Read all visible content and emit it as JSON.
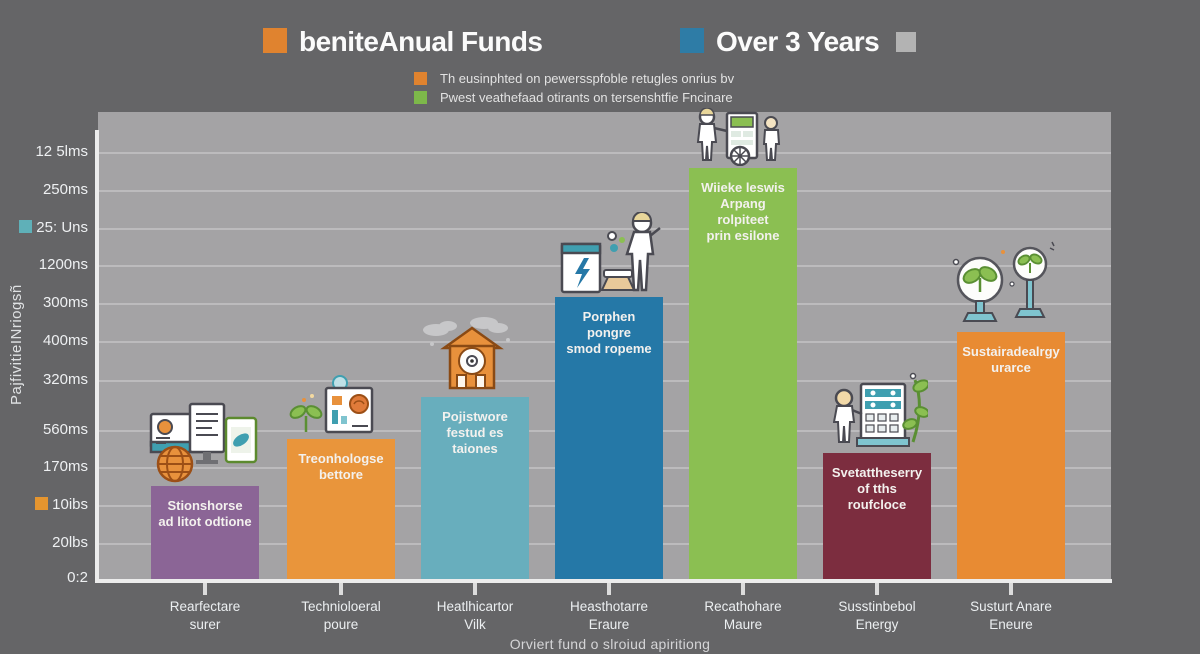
{
  "header": {
    "legend1_label": "beniteAnual Funds",
    "legend1_color": "#e0832f",
    "legend2_label": "Over 3 Years",
    "legend2_color": "#2e7ca6",
    "legend3_color": "#b3b3b3"
  },
  "subtitle": {
    "line1": {
      "swatch": "#e0832f",
      "text": "Th eusinphted on pewersspfoble retugles onrius bv"
    },
    "line2": {
      "swatch": "#7db84a",
      "text": "Pwest veathefaad otirants on tersenshtfie Fncinare"
    }
  },
  "y_axis": {
    "title": "PajfivitieINriogsñ",
    "ticks": [
      {
        "label": "12 5lms"
      },
      {
        "label": "250ms"
      },
      {
        "label": "25: Uns",
        "swatch": "#5fb0b8"
      },
      {
        "label": "1200ns"
      },
      {
        "label": "300ms"
      },
      {
        "label": "400ms"
      },
      {
        "label": "320ms"
      },
      {
        "label": "560ms"
      },
      {
        "label": "170ms"
      },
      {
        "label": "10ibs",
        "swatch": "#e5952f"
      },
      {
        "label": "20lbs"
      },
      {
        "label": "0:2"
      }
    ]
  },
  "bars": [
    {
      "lines": [
        "Stionshorse",
        "ad litot odtione"
      ],
      "xlabel": [
        "Rearfectare",
        "surer"
      ],
      "icon": "devices-globe"
    },
    {
      "lines": [
        "Treonhologse",
        "bettore"
      ],
      "xlabel": [
        "Technioloeral",
        "poure"
      ],
      "icon": "plant-chart"
    },
    {
      "lines": [
        "Pojistwore",
        "festud es taiones"
      ],
      "xlabel": [
        "Heatlhicartor",
        "Vilk"
      ],
      "icon": "house-clouds"
    },
    {
      "lines": [
        "Porphen pongre",
        "smod ropeme"
      ],
      "xlabel": [
        "Heasthotarre",
        "Eraure"
      ],
      "icon": "person-battery"
    },
    {
      "lines": [
        "Wiieke leswis",
        "Arpang rolpiteet",
        "prin esilone"
      ],
      "xlabel": [
        "Recathohare",
        "Maure"
      ],
      "icon": "people-machine"
    },
    {
      "lines": [
        "Svetattheserry",
        "of tths roufcloce"
      ],
      "xlabel": [
        "Susstinbebol",
        "Energy"
      ],
      "icon": "person-plant"
    },
    {
      "lines": [
        "Sustairadealrgy",
        "urarce"
      ],
      "xlabel": [
        "Susturt Anare",
        "Eneure"
      ],
      "icon": "globe-plants"
    }
  ],
  "caption": "Orviert fund o slroiud apiritiong",
  "chart_data": {
    "type": "bar",
    "title_left": "beniteAnual Funds",
    "title_right": "Over 3 Years",
    "categories": [
      "Rearfectare surer",
      "Technioloeral poure",
      "Heatlhicartor Vilk",
      "Heasthotarre Eraure",
      "Recathohare Maure",
      "Susstinbebol Energy",
      "Susturt Anare Eneure"
    ],
    "values_pct": [
      19.9,
      30,
      39,
      60.4,
      88,
      27,
      52.9
    ],
    "colors": [
      "#8b6596",
      "#e9953b",
      "#68aebd",
      "#2578a7",
      "#8bbf52",
      "#7c2d3f",
      "#e88b33"
    ],
    "y_tick_labels": [
      "12 5lms",
      "250ms",
      "25: Uns",
      "1200ns",
      "300ms",
      "400ms",
      "320ms",
      "560ms",
      "170ms",
      "10ibs",
      "20lbs",
      "0:2"
    ],
    "xlabel": "Orviert fund o slroiud apiritiong",
    "ylabel": "PajfivitieINriogsñ",
    "grid": true,
    "legend_position": "top"
  }
}
